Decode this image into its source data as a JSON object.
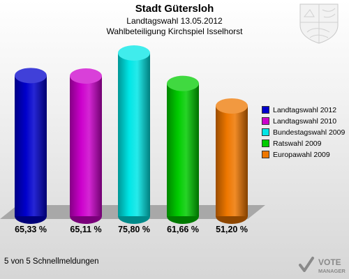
{
  "header": {
    "title": "Stadt Gütersloh",
    "subtitle": "Landtagswahl 13.05.2012",
    "subtitle2": "Wahlbeteiligung Kirchspiel Isselhorst"
  },
  "footer": {
    "text": "5 von 5 Schnellmeldungen"
  },
  "logo": {
    "line1": "VOTE",
    "line2": "MANAGER"
  },
  "chart_data": {
    "type": "bar",
    "categories": [
      "Landtagswahl 2012",
      "Landtagswahl 2010",
      "Bundestagswahl 2009",
      "Ratswahl 2009",
      "Europawahl 2009"
    ],
    "values": [
      65.33,
      65.11,
      75.8,
      61.66,
      51.2
    ],
    "value_labels": [
      "65,33 %",
      "65,11 %",
      "75,80 %",
      "61,66 %",
      "51,20 %"
    ],
    "colors": [
      "#0000cc",
      "#cc00cc",
      "#00e6e6",
      "#00cc00",
      "#ee7700"
    ],
    "title": "Stadt Gütersloh",
    "subtitle": "Landtagswahl 13.05.2012 – Wahlbeteiligung Kirchspiel Isselhorst",
    "xlabel": "",
    "ylabel": "",
    "ylim": [
      0,
      100
    ],
    "grid": false,
    "legend": "right"
  }
}
